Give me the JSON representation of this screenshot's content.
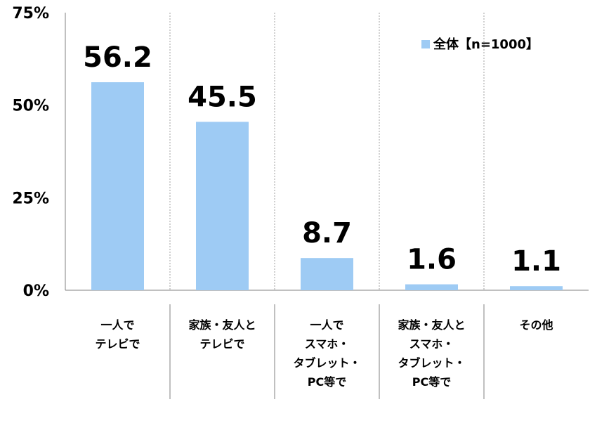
{
  "chart_data": {
    "type": "bar",
    "categories": [
      [
        "一人で",
        "テレビで"
      ],
      [
        "家族・友人と",
        "テレビで"
      ],
      [
        "一人で",
        "スマホ・",
        "タブレット・",
        "PC等で"
      ],
      [
        "家族・友人と",
        "スマホ・",
        "タブレット・",
        "PC等で"
      ],
      [
        "その他"
      ]
    ],
    "series": [
      {
        "name": "全体【n=1000】",
        "values": [
          56.2,
          45.5,
          8.7,
          1.6,
          1.1
        ]
      }
    ],
    "value_labels": [
      "56.2",
      "45.5",
      "8.7",
      "1.6",
      "1.1"
    ],
    "y_ticks": [
      "0%",
      "25%",
      "50%",
      "75%"
    ],
    "ylim": [
      0,
      75
    ],
    "legend": {
      "label": "全体【n=1000】",
      "position": "top-right"
    },
    "colors": {
      "bar": "#9ecbf4",
      "grid": "#a0a0a0",
      "axis": "#808080"
    },
    "grid": true
  }
}
